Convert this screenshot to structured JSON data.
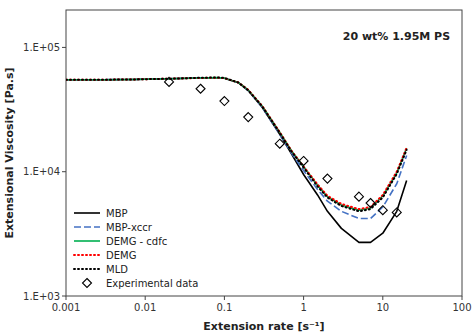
{
  "chart_data": {
    "type": "line",
    "xlabel": "Extension rate [s⁻¹]",
    "ylabel": "Extensional Viscosity [Pa.s]",
    "annotation": "20 wt% 1.95M PS",
    "log": true,
    "grid": false,
    "legend": "lower left",
    "xlim": [
      0.001,
      100
    ],
    "ylim": [
      1000,
      200000
    ],
    "xticks": [
      0.001,
      0.01,
      0.1,
      1,
      10,
      100
    ],
    "yticks": [
      {
        "value": 1000,
        "label": "1.E+03"
      },
      {
        "value": 10000,
        "label": "1.E+04"
      },
      {
        "value": 100000,
        "label": "1.E+05"
      }
    ],
    "series": [
      {
        "name": "MBP",
        "type": "line",
        "color": "#000000",
        "line_style": "solid",
        "x": [
          0.001,
          0.003,
          0.007,
          0.01,
          0.02,
          0.05,
          0.08,
          0.1,
          0.15,
          0.2,
          0.3,
          0.5,
          0.7,
          1.0,
          1.5,
          2.0,
          3.0,
          5.0,
          7.0,
          10.0,
          15.0,
          20.0
        ],
        "values": [
          55000,
          55000,
          55200,
          55500,
          56000,
          56800,
          57000,
          56500,
          52000,
          45000,
          33000,
          20000,
          14000,
          9500,
          6500,
          4800,
          3500,
          2700,
          2700,
          3200,
          4800,
          8500
        ]
      },
      {
        "name": "MBP-xccr",
        "type": "line",
        "color": "#4472c4",
        "line_style": "dashed",
        "x": [
          0.001,
          0.003,
          0.007,
          0.01,
          0.02,
          0.05,
          0.08,
          0.1,
          0.15,
          0.2,
          0.3,
          0.5,
          0.7,
          1.0,
          1.5,
          2.0,
          3.0,
          5.0,
          7.0,
          10.0,
          15.0,
          20.0
        ],
        "values": [
          55000,
          55000,
          55200,
          55500,
          56000,
          56800,
          57000,
          56500,
          52000,
          45000,
          33000,
          20000,
          14200,
          10200,
          7200,
          5800,
          4800,
          4200,
          4200,
          5200,
          8000,
          13500
        ]
      },
      {
        "name": "DEMG - cdfc",
        "type": "line",
        "color": "#00b050",
        "line_style": "solid",
        "x": [
          0.001,
          0.003,
          0.007,
          0.01,
          0.02,
          0.05,
          0.08,
          0.1,
          0.15,
          0.2,
          0.3,
          0.5,
          0.7,
          1.0,
          1.5,
          2.0,
          3.0,
          5.0,
          7.0,
          10.0,
          15.0,
          20.0
        ],
        "values": [
          55000,
          55000,
          55200,
          55500,
          56000,
          56800,
          57100,
          56600,
          52200,
          45500,
          33800,
          20800,
          14800,
          11000,
          7800,
          6300,
          5400,
          4900,
          5100,
          6400,
          9800,
          15500
        ]
      },
      {
        "name": "DEMG",
        "type": "line",
        "color": "#ff0000",
        "line_style": "dotted",
        "x": [
          0.001,
          0.003,
          0.007,
          0.01,
          0.02,
          0.05,
          0.08,
          0.1,
          0.15,
          0.2,
          0.3,
          0.5,
          0.7,
          1.0,
          1.5,
          2.0,
          3.0,
          5.0,
          7.0,
          10.0,
          15.0,
          20.0
        ],
        "values": [
          55000,
          55000,
          55200,
          55500,
          56000,
          56800,
          57100,
          56600,
          52200,
          45500,
          33800,
          20800,
          14800,
          11000,
          7900,
          6400,
          5500,
          5000,
          5200,
          6500,
          10000,
          15600
        ]
      },
      {
        "name": "MLD",
        "type": "line",
        "color": "#000000",
        "line_style": "dotted",
        "x": [
          0.001,
          0.003,
          0.007,
          0.01,
          0.02,
          0.05,
          0.08,
          0.1,
          0.15,
          0.2,
          0.3,
          0.5,
          0.7,
          1.0,
          1.5,
          2.0,
          3.0,
          5.0,
          7.0,
          10.0,
          15.0,
          20.0
        ],
        "values": [
          55000,
          55000,
          55200,
          55500,
          56000,
          57000,
          57300,
          56800,
          52200,
          45200,
          33500,
          20500,
          14600,
          10800,
          7600,
          6200,
          5300,
          4800,
          5000,
          6200,
          9600,
          15000
        ]
      },
      {
        "name": "Experimental data",
        "type": "scatter",
        "color": "#000000",
        "marker": "diamond",
        "x": [
          0.02,
          0.05,
          0.1,
          0.2,
          0.5,
          1.0,
          2.0,
          5.0,
          7.0,
          10.0,
          15.0
        ],
        "values": [
          52800,
          46500,
          37000,
          27500,
          16800,
          12200,
          8800,
          6300,
          5600,
          4900,
          4700
        ]
      }
    ]
  }
}
